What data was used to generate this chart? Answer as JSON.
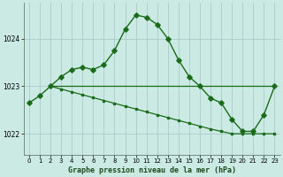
{
  "bg_color": "#cceae4",
  "grid_color": "#aacccc",
  "line_color": "#1a6b1a",
  "title": "Graphe pression niveau de la mer (hPa)",
  "xlim": [
    -0.5,
    23.5
  ],
  "ylim": [
    1021.55,
    1024.75
  ],
  "yticks": [
    1022,
    1023,
    1024
  ],
  "xticks": [
    0,
    1,
    2,
    3,
    4,
    5,
    6,
    7,
    8,
    9,
    10,
    11,
    12,
    13,
    14,
    15,
    16,
    17,
    18,
    19,
    20,
    21,
    22,
    23
  ],
  "main_x": [
    0,
    1,
    2,
    3,
    4,
    5,
    6,
    7,
    8,
    9,
    10,
    11,
    12,
    13,
    14,
    15,
    16,
    17,
    18,
    19,
    20,
    21,
    22,
    23
  ],
  "main_y": [
    1022.65,
    1022.8,
    1023.0,
    1023.2,
    1023.35,
    1023.4,
    1023.35,
    1023.45,
    1023.75,
    1024.2,
    1024.5,
    1024.45,
    1024.3,
    1024.0,
    1023.55,
    1023.2,
    1023.0,
    1022.75,
    1022.65,
    1022.3,
    1022.05,
    1022.05,
    1022.4,
    1023.0
  ],
  "flat_line_x": [
    2,
    16,
    23
  ],
  "flat_line_y": [
    1023.0,
    1023.0,
    1023.0
  ],
  "diag_line_x": [
    2,
    3,
    4,
    5,
    6,
    7,
    8,
    9,
    10,
    11,
    12,
    13,
    14,
    15,
    16,
    17,
    18,
    19,
    20,
    21,
    22,
    23
  ],
  "diag_line_y": [
    1023.0,
    1022.94,
    1022.88,
    1022.82,
    1022.76,
    1022.7,
    1022.64,
    1022.58,
    1022.52,
    1022.46,
    1022.4,
    1022.34,
    1022.28,
    1022.22,
    1022.16,
    1022.1,
    1022.05,
    1022.0,
    1022.0,
    1022.0,
    1022.0,
    1022.0
  ]
}
